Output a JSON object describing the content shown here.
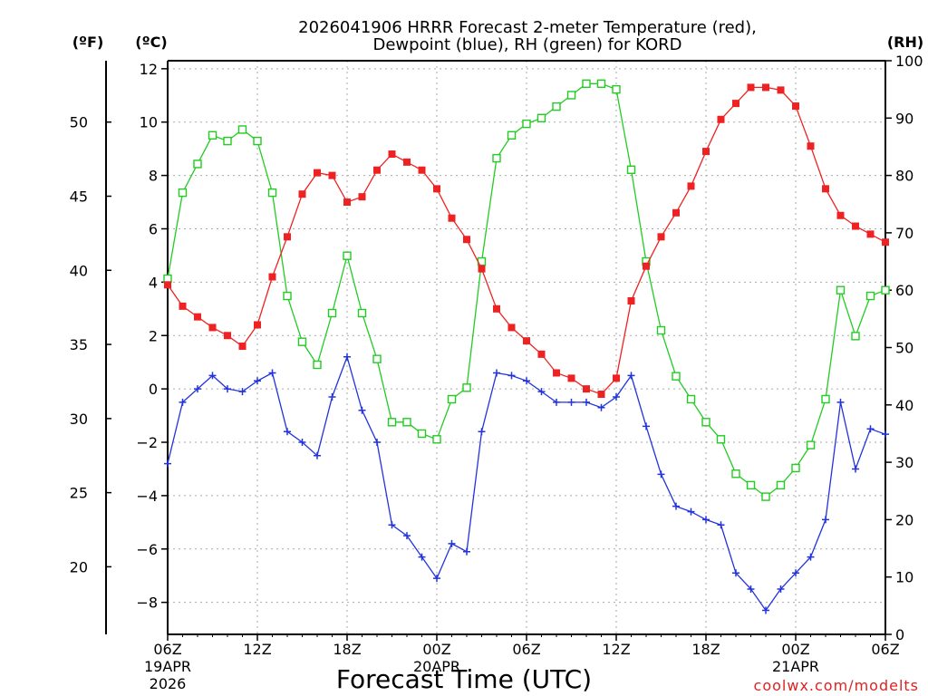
{
  "chart_data": {
    "type": "line",
    "title_line1": "2026041906 HRRR Forecast 2-meter Temperature (red),",
    "title_line2": "Dewpoint (blue), RH (green) for KORD",
    "unit_f": "(ºF)",
    "unit_c": "(ºC)",
    "unit_rh": "(RH)",
    "xlabel": "Forecast Time (UTC)",
    "credit": "coolwx.com/modelts",
    "x_range_hours": [
      0,
      48
    ],
    "y_celsius": [
      -9.2,
      12.3
    ],
    "y_rh": [
      0,
      100
    ],
    "x_ticks": [
      {
        "hour": 0,
        "label": "06Z",
        "sub1": "19APR",
        "sub2": "2026"
      },
      {
        "hour": 6,
        "label": "12Z"
      },
      {
        "hour": 12,
        "label": "18Z"
      },
      {
        "hour": 18,
        "label": "00Z",
        "sub1": "20APR"
      },
      {
        "hour": 24,
        "label": "06Z"
      },
      {
        "hour": 30,
        "label": "12Z"
      },
      {
        "hour": 36,
        "label": "18Z"
      },
      {
        "hour": 42,
        "label": "00Z",
        "sub1": "21APR"
      },
      {
        "hour": 48,
        "label": "06Z"
      }
    ],
    "celsius_ticks": [
      12,
      10,
      8,
      6,
      4,
      2,
      0,
      -2,
      -4,
      -6,
      -8
    ],
    "celsius_labels": [
      "12",
      "10",
      "8",
      "6",
      "4",
      "2",
      "0",
      "−2",
      "−4",
      "−6",
      "−8"
    ],
    "fahrenheit_ticks": [
      50,
      45,
      40,
      35,
      30,
      25,
      20
    ],
    "rh_ticks": [
      100,
      90,
      80,
      70,
      60,
      50,
      40,
      30,
      20,
      10,
      0
    ],
    "series": [
      {
        "name": "2-meter Temperature",
        "unit": "°C",
        "color": "#ee2222",
        "values": [
          3.9,
          3.1,
          2.7,
          2.3,
          2.0,
          1.6,
          2.4,
          4.2,
          5.7,
          7.3,
          8.1,
          8.0,
          7.0,
          7.2,
          8.2,
          8.8,
          8.5,
          8.2,
          7.5,
          6.4,
          5.6,
          4.5,
          3.0,
          2.3,
          1.8,
          1.3,
          0.6,
          0.4,
          0.0,
          -0.2,
          0.4,
          3.3,
          4.6,
          5.7,
          6.6,
          7.6,
          8.9,
          10.1,
          10.7,
          11.3,
          11.3,
          11.2,
          10.6,
          9.1,
          7.5,
          6.5,
          6.1,
          5.8,
          5.5
        ]
      },
      {
        "name": "Dewpoint",
        "unit": "°C",
        "color": "#2233dd",
        "values": [
          -2.8,
          -0.5,
          0.0,
          0.5,
          0.0,
          -0.1,
          0.3,
          0.6,
          -1.6,
          -2.0,
          -2.5,
          -0.3,
          1.2,
          -0.8,
          -2.0,
          -5.1,
          -5.5,
          -6.3,
          -7.1,
          -5.8,
          -6.1,
          -1.6,
          0.6,
          0.5,
          0.3,
          -0.1,
          -0.5,
          -0.5,
          -0.5,
          -0.7,
          -0.3,
          0.5,
          -1.4,
          -3.2,
          -4.4,
          -4.6,
          -4.9,
          -5.1,
          -6.9,
          -7.5,
          -8.3,
          -7.5,
          -6.9,
          -6.3,
          -4.9,
          -0.5,
          -3.0,
          -1.5,
          -1.7
        ]
      },
      {
        "name": "RH",
        "unit": "%",
        "color": "#22cc22",
        "values": [
          62,
          77,
          82,
          87,
          86,
          88,
          86,
          77,
          59,
          51,
          47,
          56,
          66,
          56,
          48,
          37,
          37,
          35,
          34,
          41,
          43,
          65,
          83,
          87,
          89,
          90,
          92,
          94,
          96,
          96,
          95,
          81,
          65,
          53,
          45,
          41,
          37,
          34,
          28,
          26,
          24,
          26,
          29,
          33,
          41,
          60,
          52,
          59,
          60
        ]
      }
    ]
  }
}
